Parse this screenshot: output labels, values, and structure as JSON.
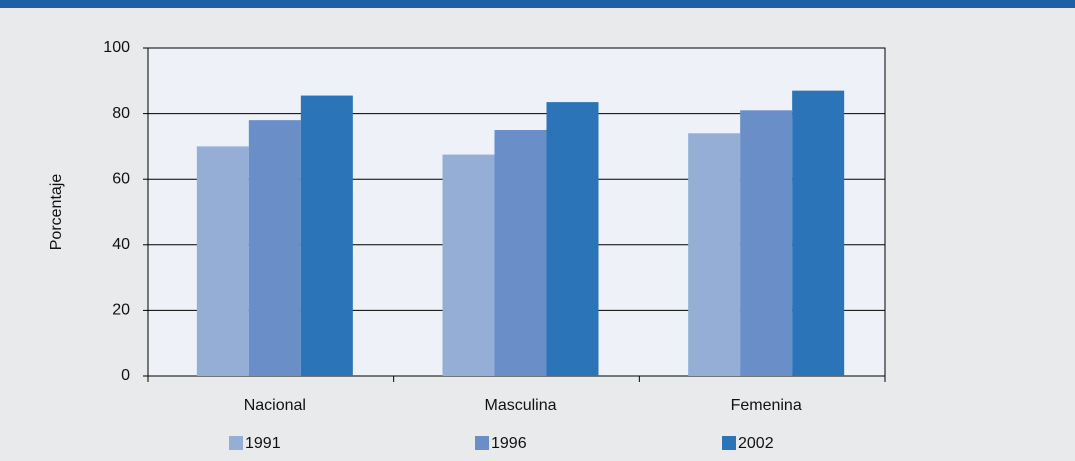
{
  "chart_data": {
    "type": "bar",
    "y_label": "Porcentaje",
    "categories": [
      "Nacional",
      "Masculina",
      "Femenina"
    ],
    "series": [
      {
        "name": "1991",
        "color": "#94aed6",
        "values": [
          70,
          67.5,
          74
        ]
      },
      {
        "name": "1996",
        "color": "#6a8ec8",
        "values": [
          78,
          75,
          81
        ]
      },
      {
        "name": "2002",
        "color": "#2b74b8",
        "values": [
          85.5,
          83.5,
          87
        ]
      }
    ],
    "ylim": [
      0,
      100
    ],
    "yticks": [
      0,
      20,
      40,
      60,
      80,
      100
    ],
    "grid": true,
    "legend": "bottom"
  }
}
